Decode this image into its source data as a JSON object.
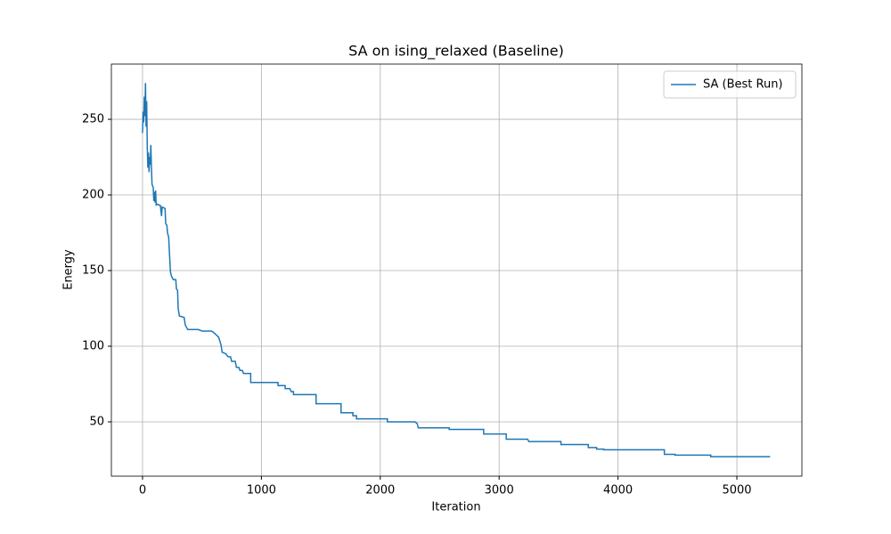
{
  "chart_data": {
    "type": "line",
    "title": "SA on ising_relaxed (Baseline)",
    "x_label": "Iteration",
    "y_label": "Energy",
    "x": [
      0,
      5,
      10,
      15,
      20,
      25,
      30,
      35,
      40,
      45,
      50,
      55,
      60,
      65,
      70,
      75,
      80,
      90,
      95,
      100,
      105,
      110,
      115,
      120,
      150,
      160,
      165,
      190,
      195,
      205,
      210,
      220,
      225,
      235,
      245,
      260,
      280,
      285,
      295,
      300,
      310,
      350,
      360,
      380,
      470,
      500,
      580,
      600,
      640,
      660,
      670,
      700,
      720,
      740,
      750,
      780,
      790,
      810,
      820,
      840,
      850,
      910,
      910,
      1140,
      1140,
      1200,
      1200,
      1240,
      1250,
      1270,
      1270,
      1460,
      1460,
      1670,
      1670,
      1770,
      1770,
      1800,
      1800,
      2060,
      2060,
      2290,
      2310,
      2320,
      2580,
      2580,
      2870,
      2870,
      3060,
      3060,
      3240,
      3250,
      3520,
      3520,
      3750,
      3750,
      3820,
      3820,
      3880,
      3880,
      4390,
      4390,
      4480,
      4480,
      4780,
      4780,
      5280
    ],
    "series": [
      {
        "name": "SA (Best Run)",
        "color": "#1f77b4",
        "values": [
          241,
          255,
          248,
          265,
          252,
          274,
          245,
          262,
          232,
          218,
          228,
          215,
          225,
          220,
          233,
          218,
          207,
          205,
          196,
          202,
          195,
          203,
          193,
          194,
          193,
          186,
          192,
          191,
          181,
          180,
          175,
          172,
          164,
          149,
          146,
          144,
          144,
          138,
          137,
          125,
          120,
          119,
          114,
          111,
          111,
          110,
          110,
          109,
          106,
          101,
          96,
          95,
          93,
          93,
          90,
          90,
          86,
          86,
          84,
          84,
          82,
          82,
          76,
          76,
          74,
          74,
          72,
          72,
          70,
          70,
          68,
          68,
          62,
          62,
          56,
          56,
          54,
          54,
          52,
          52,
          50,
          50,
          49,
          46,
          46,
          45,
          45,
          42,
          42,
          38.5,
          38.5,
          37,
          37,
          35,
          35,
          33,
          33,
          32,
          32,
          31.5,
          31.5,
          28.5,
          28.5,
          28,
          28,
          27,
          27
        ]
      }
    ],
    "xlim": [
      -262,
      5547
    ],
    "ylim": [
      14.1,
      286.5
    ],
    "xticks": [
      0,
      1000,
      2000,
      3000,
      4000,
      5000
    ],
    "yticks": [
      50,
      100,
      150,
      200,
      250
    ],
    "grid": true,
    "legend": "upper right"
  }
}
